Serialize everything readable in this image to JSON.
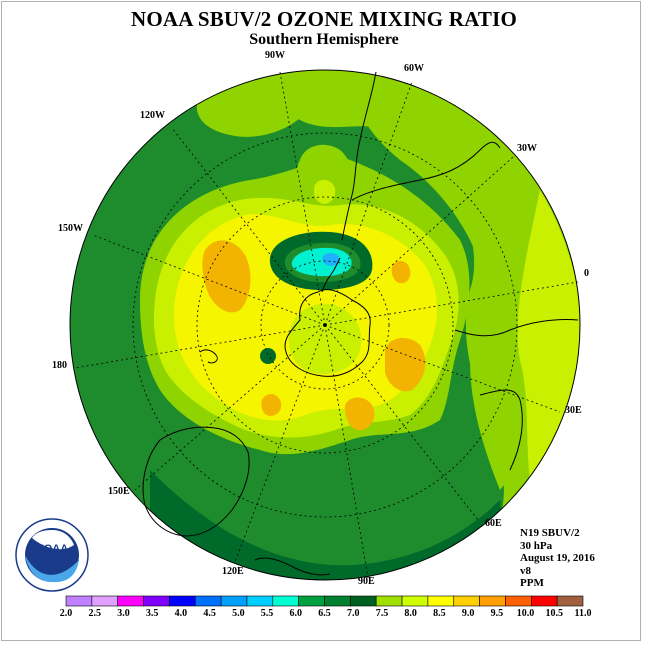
{
  "title": "NOAA SBUV/2 OZONE MIXING RATIO",
  "subtitle": "Southern Hemisphere",
  "longitude_labels": [
    "90W",
    "60W",
    "120W",
    "30W",
    "150W",
    "0",
    "180",
    "30E",
    "150E",
    "60E",
    "120E",
    "90E"
  ],
  "info": {
    "satellite": "N19 SBUV/2",
    "pressure": "30 hPa",
    "date": "August 19, 2016",
    "version": "v8",
    "units": "PPM"
  },
  "logo_text": "NOAA",
  "colorbar": {
    "labels": [
      "2.0",
      "2.5",
      "3.0",
      "3.5",
      "4.0",
      "4.5",
      "5.0",
      "5.5",
      "6.0",
      "6.5",
      "7.0",
      "7.5",
      "8.0",
      "8.5",
      "9.0",
      "9.5",
      "10.0",
      "10.5",
      "11.0"
    ],
    "colors": [
      "#c080ff",
      "#e0a0ff",
      "#ff00ff",
      "#8000ff",
      "#0000ff",
      "#0070ff",
      "#00a0ff",
      "#00d0ff",
      "#00ffd0",
      "#00a040",
      "#008030",
      "#006020",
      "#a0e000",
      "#d0ff00",
      "#ffff00",
      "#ffd000",
      "#ffa000",
      "#ff6000",
      "#ff0000",
      "#a06040"
    ]
  },
  "palette": {
    "green_6_5": "#006a2a",
    "green_7_0": "#1e8c2c",
    "lime_7_5": "#8fd400",
    "lime_8_0": "#c8f000",
    "yellow_8_5": "#f6f500",
    "orange_9_0": "#f2b400",
    "cyan_6_0": "#00f0d0",
    "blue_5_5": "#20b0ff"
  }
}
